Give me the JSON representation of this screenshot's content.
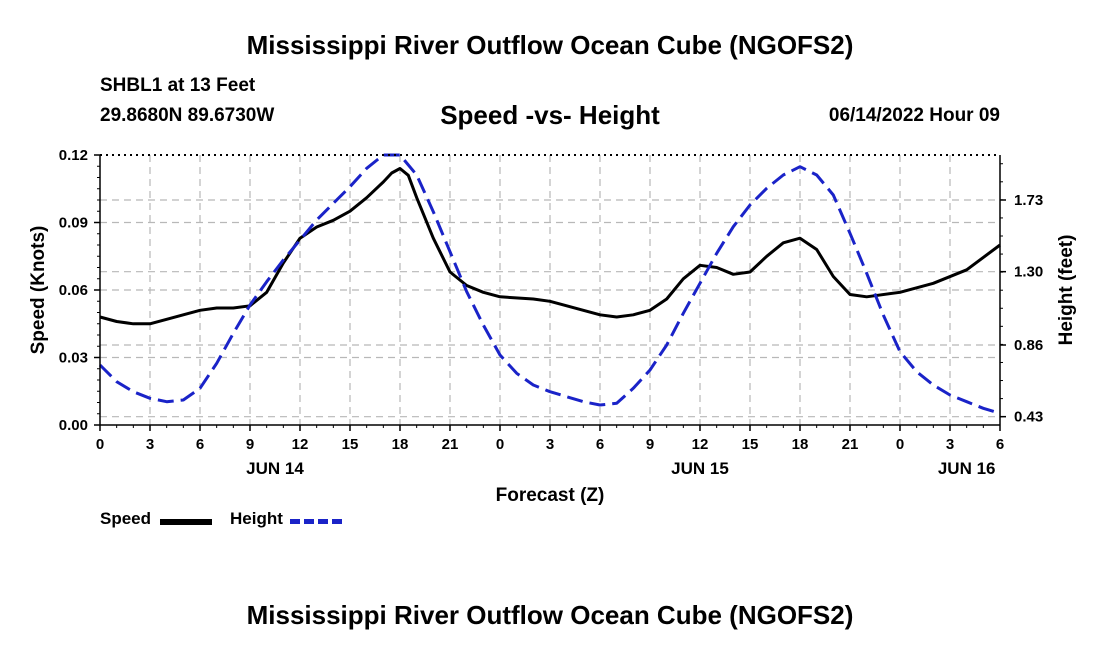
{
  "page": {
    "title": "Mississippi River Outflow Ocean Cube (NGOFS2)",
    "footer_title": "Mississippi River Outflow Ocean Cube (NGOFS2)",
    "station": "SHBL1 at 13 Feet",
    "coords": "29.8680N  89.6730W",
    "subtitle": "Speed -vs- Height",
    "datetime": "06/14/2022 Hour 09"
  },
  "chart_data": {
    "type": "line",
    "title": "Speed -vs- Height",
    "xlabel": "Forecast (Z)",
    "ylabel": "Speed (Knots)",
    "y2label": "Height (feet)",
    "x_range": [
      0,
      54
    ],
    "x_ticks": [
      {
        "x": 0,
        "label": "0"
      },
      {
        "x": 3,
        "label": "3"
      },
      {
        "x": 6,
        "label": "6"
      },
      {
        "x": 9,
        "label": "9"
      },
      {
        "x": 12,
        "label": "12"
      },
      {
        "x": 15,
        "label": "15"
      },
      {
        "x": 18,
        "label": "18"
      },
      {
        "x": 21,
        "label": "21"
      },
      {
        "x": 24,
        "label": "0"
      },
      {
        "x": 27,
        "label": "3"
      },
      {
        "x": 30,
        "label": "6"
      },
      {
        "x": 33,
        "label": "9"
      },
      {
        "x": 36,
        "label": "12"
      },
      {
        "x": 39,
        "label": "15"
      },
      {
        "x": 42,
        "label": "18"
      },
      {
        "x": 45,
        "label": "21"
      },
      {
        "x": 48,
        "label": "0"
      },
      {
        "x": 51,
        "label": "3"
      },
      {
        "x": 54,
        "label": "6"
      }
    ],
    "day_labels": [
      {
        "x": 10.5,
        "label": "JUN 14"
      },
      {
        "x": 36,
        "label": "JUN 15"
      },
      {
        "x": 52,
        "label": "JUN 16"
      }
    ],
    "ylim": [
      0,
      0.12
    ],
    "y_ticks": [
      "0.00",
      "0.03",
      "0.06",
      "0.09",
      "0.12"
    ],
    "y2lim": [
      0.38,
      2.0
    ],
    "y2_ticks": [
      "0.43",
      "0.86",
      "1.30",
      "1.73"
    ],
    "series": [
      {
        "name": "Speed",
        "axis": "left",
        "color": "#000000",
        "style": "solid",
        "x": [
          0,
          1,
          2,
          3,
          4,
          5,
          6,
          7,
          8,
          9,
          10,
          11,
          12,
          13,
          14,
          15,
          16,
          17,
          17.5,
          18,
          18.5,
          19,
          20,
          21,
          22,
          23,
          24,
          26,
          27,
          28,
          29,
          30,
          31,
          32,
          33,
          34,
          35,
          36,
          37,
          38,
          39,
          40,
          41,
          42,
          43,
          44,
          45,
          46,
          48,
          50,
          52,
          54
        ],
        "values": [
          0.048,
          0.046,
          0.045,
          0.045,
          0.047,
          0.049,
          0.051,
          0.052,
          0.052,
          0.053,
          0.059,
          0.072,
          0.083,
          0.088,
          0.091,
          0.095,
          0.101,
          0.108,
          0.112,
          0.114,
          0.111,
          0.101,
          0.083,
          0.068,
          0.062,
          0.059,
          0.057,
          0.056,
          0.055,
          0.053,
          0.051,
          0.049,
          0.048,
          0.049,
          0.051,
          0.056,
          0.065,
          0.071,
          0.07,
          0.067,
          0.068,
          0.075,
          0.081,
          0.083,
          0.078,
          0.066,
          0.058,
          0.057,
          0.059,
          0.063,
          0.069,
          0.08
        ]
      },
      {
        "name": "Height",
        "axis": "right",
        "color": "#1a23c8",
        "style": "dashed",
        "x": [
          0,
          1,
          2,
          3,
          4,
          5,
          6,
          7,
          8,
          9,
          10,
          11,
          12,
          13,
          14,
          15,
          16,
          17,
          18,
          19,
          20,
          21,
          22,
          23,
          24,
          25,
          26,
          27,
          28,
          29,
          30,
          31,
          32,
          33,
          34,
          35,
          36,
          37,
          38,
          39,
          40,
          41,
          42,
          43,
          44,
          45,
          46,
          47,
          48,
          49,
          50,
          51,
          52,
          53,
          54
        ],
        "values": [
          0.74,
          0.64,
          0.58,
          0.54,
          0.52,
          0.53,
          0.6,
          0.75,
          0.93,
          1.1,
          1.24,
          1.37,
          1.49,
          1.61,
          1.71,
          1.81,
          1.92,
          2.0,
          2.0,
          1.88,
          1.66,
          1.42,
          1.18,
          0.98,
          0.8,
          0.69,
          0.62,
          0.58,
          0.55,
          0.52,
          0.5,
          0.51,
          0.6,
          0.71,
          0.86,
          1.05,
          1.23,
          1.41,
          1.57,
          1.7,
          1.8,
          1.88,
          1.93,
          1.88,
          1.76,
          1.53,
          1.29,
          1.04,
          0.82,
          0.7,
          0.62,
          0.56,
          0.52,
          0.48,
          0.45
        ]
      }
    ],
    "legend": [
      {
        "label": "Speed",
        "color": "#000000",
        "style": "solid"
      },
      {
        "label": "Height",
        "color": "#1a23c8",
        "style": "dashed"
      }
    ]
  }
}
